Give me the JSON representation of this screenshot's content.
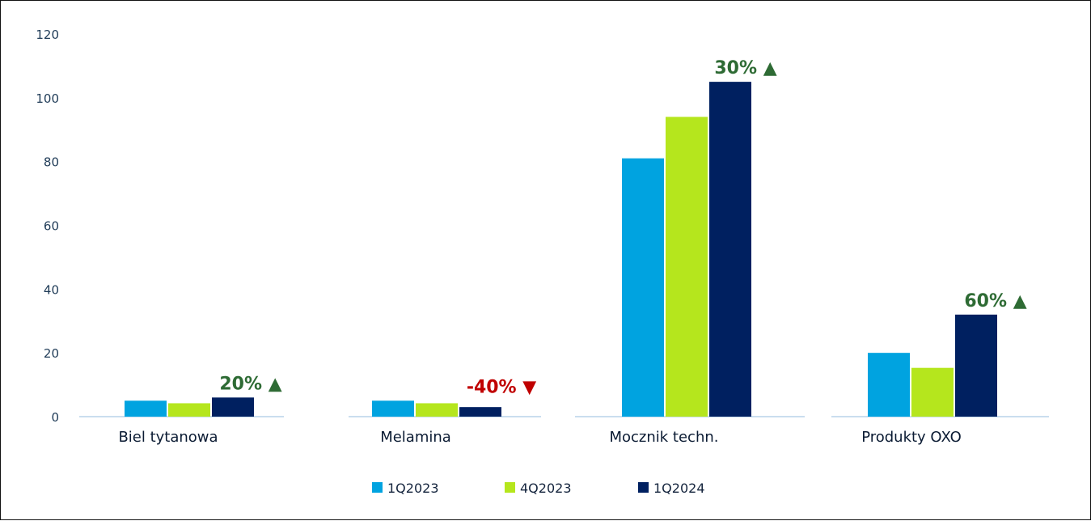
{
  "chart_data": {
    "type": "bar",
    "categories": [
      "Biel tytanowa",
      "Melamina",
      "Mocznik techn.",
      "Produkty OXO"
    ],
    "series": [
      {
        "name": "1Q2023",
        "color": "#00a3e0",
        "values": [
          5,
          5,
          81,
          20
        ]
      },
      {
        "name": "4Q2023",
        "color": "#b5e61d",
        "values": [
          4.2,
          4.2,
          94,
          15.3
        ]
      },
      {
        "name": "1Q2024",
        "color": "#002060",
        "values": [
          6,
          3,
          105,
          32
        ]
      }
    ],
    "annotations": [
      {
        "text": "20%",
        "arrow": "▲",
        "direction": "up",
        "color": "#2e6b34"
      },
      {
        "text": "-40%",
        "arrow": "▼",
        "direction": "down",
        "color": "#c00000"
      },
      {
        "text": "30%",
        "arrow": "▲",
        "direction": "up",
        "color": "#2e6b34"
      },
      {
        "text": "60%",
        "arrow": "▲",
        "direction": "up",
        "color": "#2e6b34"
      }
    ],
    "yticks": [
      0,
      20,
      40,
      60,
      80,
      100,
      120
    ],
    "ylim": [
      0,
      120
    ],
    "title": "",
    "xlabel": "",
    "ylabel": "",
    "grid": false,
    "legend_position": "bottom"
  }
}
